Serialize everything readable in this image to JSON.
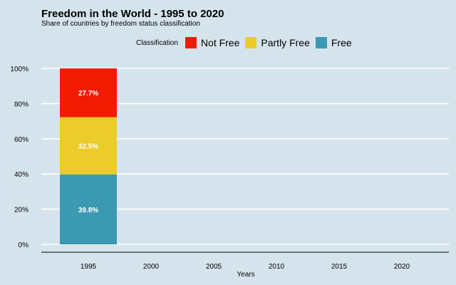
{
  "chart_data": {
    "type": "bar",
    "stacked": true,
    "title": "Freedom in the World - 1995 to 2020",
    "subtitle": "Share of countries by freedom status classification",
    "xlabel": "Years",
    "ylabel": "",
    "x_ticks": [
      "1995",
      "2000",
      "2005",
      "2010",
      "2015",
      "2020"
    ],
    "y_ticks": [
      "0%",
      "20%",
      "40%",
      "60%",
      "80%",
      "100%"
    ],
    "ylim": [
      0,
      100
    ],
    "legend_title": "Classification",
    "legend_position": "top",
    "categories": [
      "1995"
    ],
    "series": [
      {
        "name": "Free",
        "color": "#3b9ab2",
        "values": [
          39.8
        ],
        "labels": [
          "39.8%"
        ]
      },
      {
        "name": "Partly Free",
        "color": "#ebcc2a",
        "values": [
          32.5
        ],
        "labels": [
          "32.5%"
        ]
      },
      {
        "name": "Not Free",
        "color": "#f21a00",
        "values": [
          27.7
        ],
        "labels": [
          "27.7%"
        ]
      }
    ],
    "legend_order": [
      "Not Free",
      "Partly Free",
      "Free"
    ],
    "grid": "horizontal-major"
  }
}
